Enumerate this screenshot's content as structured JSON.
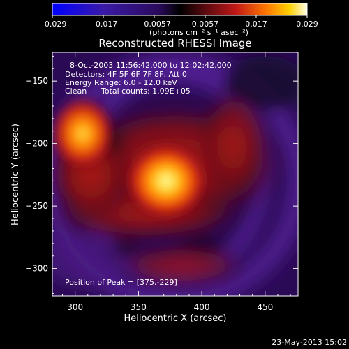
{
  "colorbar": {
    "ticks": [
      "−0.029",
      "−0.017",
      "−0.0057",
      "0.0057",
      "0.017",
      "0.029"
    ],
    "units": "(photons cm⁻² s⁻¹ asec⁻²)"
  },
  "plot": {
    "title": "Reconstructed RHESSI Image",
    "xlabel": "Heliocentric X (arcsec)",
    "ylabel": "Heliocentric Y (arcsec)",
    "xticks": [
      "300",
      "350",
      "400",
      "450"
    ],
    "yticks": [
      "−150",
      "−200",
      "−250",
      "−300"
    ],
    "xlim": [
      282,
      476
    ],
    "ylim": [
      -322,
      -127
    ]
  },
  "annotations": {
    "time_range": "8-Oct-2003 11:56:42.000 to 12:02:42.000",
    "detectors": "Detectors: 4F 5F 6F 7F 8F, Att 0",
    "energy": "Energy Range: 6.0 - 12.0 keV",
    "method": "Clean",
    "counts": "Total counts: 1.09E+05",
    "peak": "Position of Peak = [375,-229]"
  },
  "footer": {
    "timestamp": "23-May-2013 15:02"
  },
  "image": {
    "sources": [
      {
        "name": "main",
        "x": 372,
        "y": -230,
        "peak": 0.029
      },
      {
        "name": "left",
        "x": 306,
        "y": -192,
        "peak": 0.022
      }
    ]
  }
}
